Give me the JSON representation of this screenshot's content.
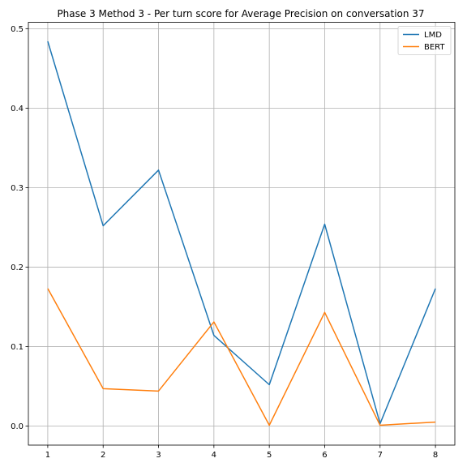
{
  "chart_data": {
    "type": "line",
    "title": "Phase 3 Method 3 - Per turn score for Average Precision on conversation 37",
    "xlabel": "",
    "ylabel": "",
    "x": [
      1,
      2,
      3,
      4,
      5,
      6,
      7,
      8
    ],
    "xticks": [
      "1",
      "2",
      "3",
      "4",
      "5",
      "6",
      "7",
      "8"
    ],
    "yticks": [
      "0.0",
      "0.1",
      "0.2",
      "0.3",
      "0.4",
      "0.5"
    ],
    "xlim": [
      0.65,
      8.35
    ],
    "ylim": [
      -0.024,
      0.508
    ],
    "grid": true,
    "legend_position": "top-right",
    "series": [
      {
        "name": "LMD",
        "color": "#1f77b4",
        "values": [
          0.484,
          0.252,
          0.322,
          0.114,
          0.052,
          0.254,
          0.003,
          0.173
        ]
      },
      {
        "name": "BERT",
        "color": "#ff7f0e",
        "values": [
          0.173,
          0.047,
          0.044,
          0.131,
          0.001,
          0.143,
          0.001,
          0.005
        ]
      }
    ]
  }
}
